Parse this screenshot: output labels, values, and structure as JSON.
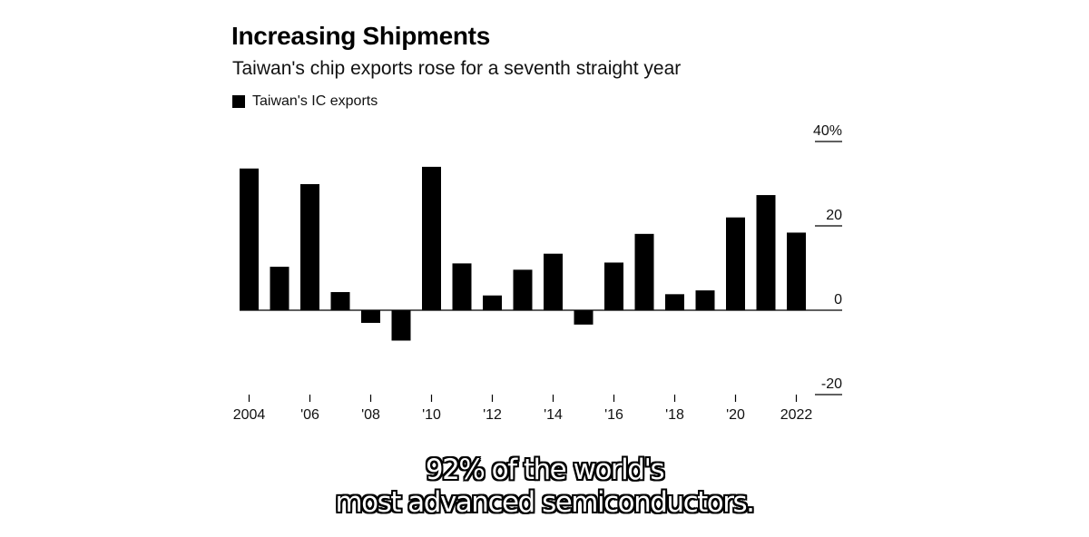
{
  "title": "Increasing Shipments",
  "subtitle": "Taiwan's chip exports rose for a seventh straight year",
  "caption": {
    "line1": "92% of the world's",
    "line2": "most advanced semiconductors."
  },
  "colors": {
    "bar": "#000000",
    "axis": "#000000",
    "caption_text": "#ffffff"
  },
  "chart_data": {
    "type": "bar",
    "legend": "Taiwan's IC exports",
    "legend_position": "top-left",
    "categories": [
      "2004",
      "2005",
      "2006",
      "2007",
      "2008",
      "2009",
      "2010",
      "2011",
      "2012",
      "2013",
      "2014",
      "2015",
      "2016",
      "2017",
      "2018",
      "2019",
      "2020",
      "2021",
      "2022"
    ],
    "x_tick_labels": [
      "2004",
      "'06",
      "'08",
      "'10",
      "'12",
      "'14",
      "'16",
      "'18",
      "'20",
      "2022"
    ],
    "x_tick_years": [
      "2004",
      "2006",
      "2008",
      "2010",
      "2012",
      "2014",
      "2016",
      "2018",
      "2020",
      "2022"
    ],
    "series": [
      {
        "name": "Taiwan's IC exports",
        "values": [
          33.6,
          10.3,
          29.9,
          4.3,
          -3.0,
          -7.2,
          34.0,
          11.1,
          3.5,
          9.6,
          13.4,
          -3.4,
          11.3,
          18.1,
          3.8,
          4.7,
          22.0,
          27.3,
          18.4
        ]
      }
    ],
    "ylim": [
      -20,
      40
    ],
    "y_ticks": [
      40,
      20,
      0,
      -20
    ],
    "y_tick_labels": [
      "40%",
      "20",
      "0",
      "-20"
    ],
    "grid": false
  }
}
